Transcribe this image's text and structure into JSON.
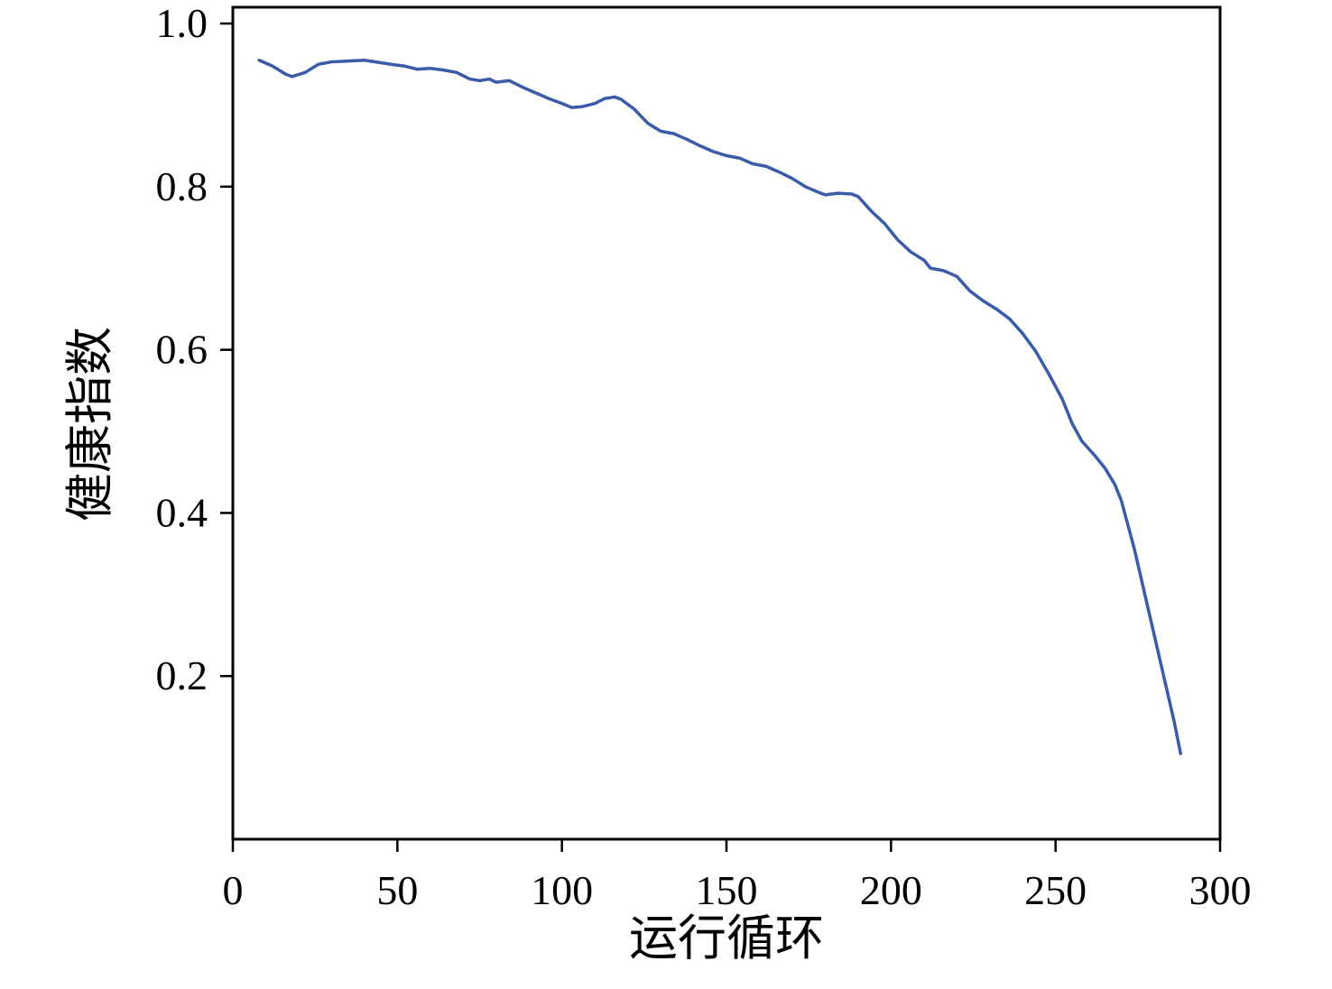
{
  "chart_data": {
    "type": "line",
    "title": "",
    "xlabel": "运行循环",
    "ylabel": "健康指数",
    "xlim": [
      0,
      300
    ],
    "ylim": [
      0,
      1.02
    ],
    "xticks": [
      0,
      50,
      100,
      150,
      200,
      250,
      300
    ],
    "yticks": [
      0.2,
      0.4,
      0.6,
      0.8,
      1.0
    ],
    "grid": false,
    "legend": "none",
    "line_color": "#3A5CA8",
    "series": [
      {
        "name": "健康指数",
        "x": [
          8,
          12,
          16,
          18,
          22,
          26,
          30,
          35,
          40,
          45,
          48,
          52,
          56,
          60,
          64,
          68,
          72,
          75,
          78,
          80,
          84,
          88,
          92,
          96,
          100,
          103,
          106,
          110,
          113,
          116,
          118,
          122,
          126,
          130,
          134,
          138,
          142,
          146,
          150,
          154,
          158,
          162,
          166,
          170,
          174,
          178,
          180,
          184,
          188,
          190,
          194,
          198,
          202,
          206,
          210,
          212,
          216,
          220,
          224,
          228,
          232,
          236,
          240,
          244,
          248,
          252,
          255,
          258,
          262,
          265,
          268,
          270,
          272,
          274,
          276,
          278,
          280,
          282,
          284,
          286,
          287,
          288
        ],
        "y": [
          0.955,
          0.948,
          0.938,
          0.935,
          0.94,
          0.95,
          0.953,
          0.954,
          0.955,
          0.952,
          0.95,
          0.948,
          0.944,
          0.945,
          0.943,
          0.94,
          0.932,
          0.93,
          0.932,
          0.928,
          0.93,
          0.922,
          0.915,
          0.908,
          0.902,
          0.897,
          0.898,
          0.902,
          0.908,
          0.91,
          0.907,
          0.895,
          0.878,
          0.868,
          0.865,
          0.858,
          0.85,
          0.843,
          0.838,
          0.835,
          0.828,
          0.825,
          0.818,
          0.81,
          0.8,
          0.793,
          0.79,
          0.792,
          0.791,
          0.788,
          0.77,
          0.755,
          0.735,
          0.72,
          0.71,
          0.7,
          0.697,
          0.69,
          0.672,
          0.66,
          0.65,
          0.638,
          0.62,
          0.598,
          0.57,
          0.54,
          0.51,
          0.488,
          0.47,
          0.455,
          0.435,
          0.415,
          0.385,
          0.355,
          0.32,
          0.285,
          0.25,
          0.215,
          0.18,
          0.145,
          0.125,
          0.105
        ]
      }
    ]
  }
}
